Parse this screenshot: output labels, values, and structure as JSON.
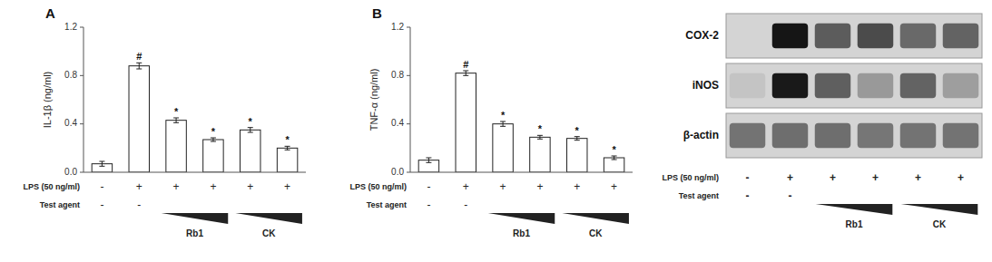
{
  "chart_data": [
    {
      "type": "bar",
      "title": "A",
      "ylabel": "IL-1β (ng/ml)",
      "categories": [
        null,
        null,
        null,
        null,
        null,
        null
      ],
      "values": [
        0.07,
        0.88,
        0.43,
        0.27,
        0.35,
        0.2
      ],
      "errors": [
        0.02,
        0.025,
        0.02,
        0.015,
        0.02,
        0.015
      ],
      "bar_marks": [
        null,
        "#",
        "*",
        "*",
        "*",
        "*"
      ],
      "color": "#ffffff",
      "ylim": [
        0,
        1.2
      ],
      "yticks": [
        {
          "value": 0,
          "label": "0.0"
        },
        0.4,
        0.8,
        1.2
      ],
      "grid": false,
      "tick_labels": "y",
      "lps_label": "LPS (50 ng/ml)",
      "lps_row": [
        "-",
        "+",
        "+",
        "+",
        "+",
        "+"
      ],
      "agent_label": "Test agent",
      "agent_row": [
        "-",
        "-"
      ],
      "groups": [
        "Rb1",
        "CK"
      ]
    },
    {
      "type": "bar",
      "title": "B",
      "ylabel": "TNF-α (ng/ml)",
      "categories": [
        null,
        null,
        null,
        null,
        null,
        null
      ],
      "values": [
        0.1,
        0.82,
        0.4,
        0.29,
        0.28,
        0.12
      ],
      "errors": [
        0.02,
        0.02,
        0.02,
        0.015,
        0.015,
        0.015
      ],
      "bar_marks": [
        null,
        "#",
        "*",
        "*",
        "*",
        "*"
      ],
      "color": "#ffffff",
      "ylim": [
        0,
        1.2
      ],
      "yticks": [
        {
          "value": 0,
          "label": "0.0"
        },
        0.4,
        0.8,
        1.2
      ],
      "grid": false,
      "tick_labels": "y",
      "lps_label": "LPS (50 ng/ml)",
      "lps_row": [
        "-",
        "+",
        "+",
        "+",
        "+",
        "+"
      ],
      "agent_label": "Test agent",
      "agent_row": [
        "-",
        "-"
      ],
      "groups": [
        "Rb1",
        "CK"
      ]
    },
    {
      "type": "blot",
      "series": [
        {
          "name": "COX-2",
          "values": [
            0.0,
            0.98,
            0.62,
            0.7,
            0.55,
            0.58
          ]
        },
        {
          "name": "iNOS",
          "values": [
            0.08,
            0.96,
            0.6,
            0.3,
            0.58,
            0.28
          ]
        },
        {
          "name": "β-actin",
          "values": [
            0.5,
            0.52,
            0.52,
            0.48,
            0.5,
            0.5
          ]
        }
      ],
      "tick_labels": false,
      "lps_label": "LPS (50 ng/ml)",
      "lps_row": [
        "-",
        "+",
        "+",
        "+",
        "+",
        "+"
      ],
      "agent_label": "Test agent",
      "agent_row": [
        "-",
        "-"
      ],
      "groups": [
        "Rb1",
        "CK"
      ]
    }
  ]
}
